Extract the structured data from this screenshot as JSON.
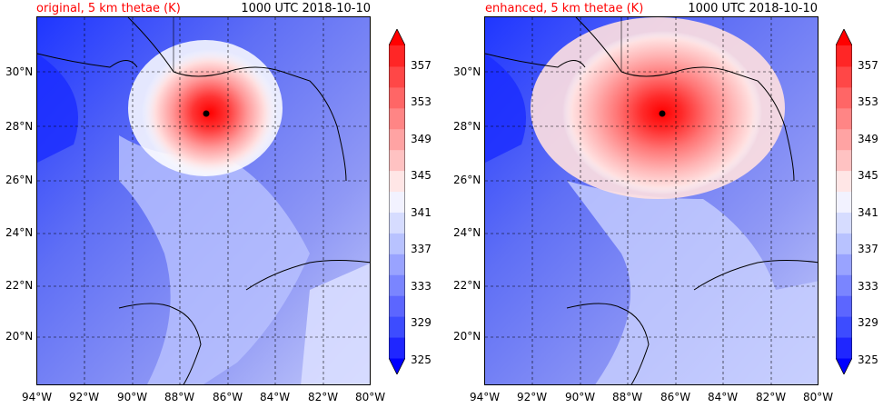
{
  "panels": [
    {
      "title_left": "original, 5 km thetae (K)",
      "title_right": "1000 UTC 2018-10-10"
    },
    {
      "title_left": "enhanced, 5 km thetae (K)",
      "title_right": "1000 UTC 2018-10-10"
    }
  ],
  "lat_labels": [
    "30°N",
    "28°N",
    "26°N",
    "24°N",
    "22°N",
    "20°N"
  ],
  "lon_labels": [
    "94°W",
    "92°W",
    "90°W",
    "88°W",
    "86°W",
    "84°W",
    "82°W",
    "80°W"
  ],
  "colorbar": {
    "labels": [
      "357",
      "353",
      "349",
      "345",
      "341",
      "337",
      "333",
      "329",
      "325"
    ],
    "colors": [
      "#0000ff",
      "#1f26ff",
      "#3d4cff",
      "#5c66ff",
      "#7a85ff",
      "#99a3ff",
      "#b8c2ff",
      "#d6dcff",
      "#f2f2ff",
      "#ffe6e6",
      "#ffc2c2",
      "#ffa3a3",
      "#ff8585",
      "#ff6666",
      "#ff4747",
      "#ff2626",
      "#ff0000"
    ]
  },
  "colors": {
    "title_red": "#ff0000",
    "center_marker": "#000000"
  }
}
